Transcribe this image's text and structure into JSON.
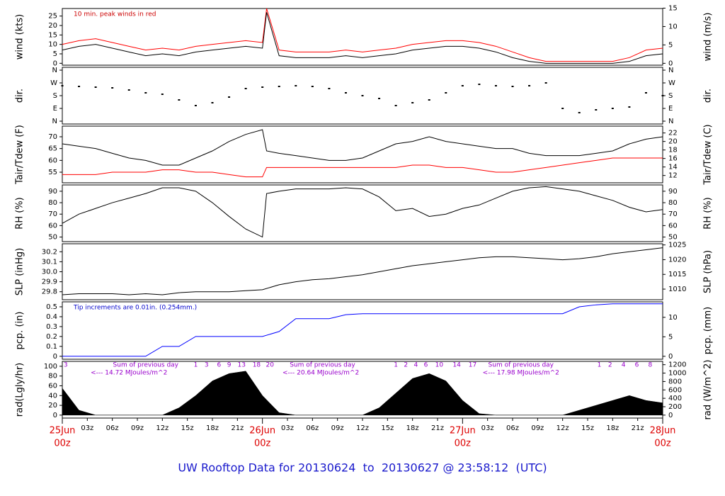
{
  "chart_data": [
    {
      "type": "line",
      "ylabel": "wind (kts)",
      "y2label": "wind (m/s)",
      "x": [
        0,
        2,
        4,
        6,
        8,
        10,
        12,
        14,
        16,
        18,
        20,
        22,
        24,
        24.5,
        26,
        28,
        30,
        32,
        34,
        36,
        38,
        40,
        42,
        44,
        46,
        48,
        50,
        52,
        54,
        56,
        58,
        60,
        62,
        64,
        66,
        68,
        70,
        72
      ],
      "series": [
        {
          "name": "10 min. peak",
          "color": "#ff0000",
          "values": [
            10,
            12,
            13,
            11,
            9,
            7,
            8,
            7,
            9,
            10,
            11,
            12,
            11,
            29,
            7,
            6,
            6,
            6,
            7,
            6,
            7,
            8,
            10,
            11,
            12,
            12,
            11,
            9,
            6,
            3,
            1,
            1,
            1,
            1,
            1,
            3,
            7,
            8
          ]
        },
        {
          "name": "wind",
          "color": "#000000",
          "values": [
            7,
            9,
            10,
            8,
            6,
            4,
            5,
            4,
            6,
            7,
            8,
            9,
            8,
            27,
            4,
            3,
            3,
            3,
            4,
            3,
            4,
            5,
            7,
            8,
            9,
            9,
            8,
            6,
            3,
            1,
            0,
            0,
            0,
            0,
            0,
            1,
            4,
            5
          ]
        }
      ],
      "ylim": [
        -1,
        29
      ],
      "yticks": [
        0,
        5,
        10,
        15,
        20,
        25
      ],
      "y2lim": [
        -0.51,
        14.9
      ],
      "y2ticks": [
        0,
        5,
        10,
        15
      ],
      "annotation": "10 min. peak winds in red",
      "annotation_color": "#cc0000"
    },
    {
      "type": "scatter",
      "ylabel": "dir.",
      "y2label": "dir.",
      "x": [
        0,
        2,
        4,
        6,
        8,
        10,
        12,
        14,
        16,
        18,
        20,
        22,
        24,
        26,
        28,
        30,
        32,
        34,
        36,
        38,
        40,
        42,
        44,
        46,
        48,
        50,
        52,
        54,
        56,
        58,
        60,
        62,
        64,
        66,
        68,
        70,
        72
      ],
      "series": [
        {
          "name": "dir",
          "color": "#000000",
          "values": [
            250,
            245,
            240,
            235,
            220,
            200,
            190,
            150,
            110,
            130,
            170,
            230,
            240,
            245,
            250,
            245,
            230,
            200,
            180,
            160,
            110,
            130,
            150,
            200,
            250,
            260,
            250,
            245,
            250,
            270,
            90,
            60,
            80,
            90,
            100,
            200,
            180
          ]
        }
      ],
      "ylim": [
        -20,
        380
      ],
      "yticks": [
        {
          "value": 0,
          "label": "N"
        },
        {
          "value": 90,
          "label": "E"
        },
        {
          "value": 180,
          "label": "S"
        },
        {
          "value": 270,
          "label": "W"
        },
        {
          "value": 360,
          "label": "N"
        }
      ],
      "y2lim": [
        -20,
        380
      ],
      "y2ticks": [
        {
          "value": 0,
          "label": "N"
        },
        {
          "value": 90,
          "label": "E"
        },
        {
          "value": 180,
          "label": "S"
        },
        {
          "value": 270,
          "label": "W"
        },
        {
          "value": 360,
          "label": "N"
        }
      ]
    },
    {
      "type": "line",
      "ylabel": "Tair/Tdew (F)",
      "y2label": "Tair/Tdew (C)",
      "x": [
        0,
        2,
        4,
        6,
        8,
        10,
        12,
        14,
        16,
        18,
        20,
        22,
        24,
        24.5,
        26,
        28,
        30,
        32,
        34,
        36,
        38,
        40,
        42,
        44,
        46,
        48,
        50,
        52,
        54,
        56,
        58,
        60,
        62,
        64,
        66,
        68,
        70,
        72
      ],
      "series": [
        {
          "name": "Tair",
          "color": "#000000",
          "values": [
            67,
            66,
            65,
            63,
            61,
            60,
            58,
            58,
            61,
            64,
            68,
            71,
            73,
            64,
            63,
            62,
            61,
            60,
            60,
            61,
            64,
            67,
            68,
            70,
            68,
            67,
            66,
            65,
            65,
            63,
            62,
            62,
            62,
            63,
            64,
            67,
            69,
            70
          ]
        },
        {
          "name": "Tdew",
          "color": "#ff0000",
          "values": [
            54,
            54,
            54,
            55,
            55,
            55,
            56,
            56,
            55,
            55,
            54,
            53,
            53,
            57,
            57,
            57,
            57,
            57,
            57,
            57,
            57,
            57,
            58,
            58,
            57,
            57,
            56,
            55,
            55,
            56,
            57,
            58,
            59,
            60,
            61,
            61,
            61,
            61
          ]
        }
      ],
      "ylim": [
        50.5,
        74.5
      ],
      "yticks": [
        55,
        60,
        65,
        70
      ],
      "y2lim": [
        10.28,
        23.61
      ],
      "y2ticks": [
        12,
        14,
        16,
        18,
        20,
        22
      ]
    },
    {
      "type": "line",
      "ylabel": "RH (%)",
      "y2label": "RH (%)",
      "x": [
        0,
        2,
        4,
        6,
        8,
        10,
        12,
        14,
        16,
        18,
        20,
        22,
        24,
        24.5,
        26,
        28,
        30,
        32,
        34,
        36,
        38,
        40,
        42,
        44,
        46,
        48,
        50,
        52,
        54,
        56,
        58,
        60,
        62,
        64,
        66,
        68,
        70,
        72
      ],
      "series": [
        {
          "name": "RH",
          "color": "#000000",
          "values": [
            62,
            70,
            75,
            80,
            84,
            88,
            93,
            93,
            90,
            80,
            68,
            57,
            50,
            88,
            90,
            92,
            92,
            92,
            93,
            92,
            85,
            73,
            75,
            68,
            70,
            75,
            78,
            84,
            90,
            93,
            94,
            92,
            90,
            86,
            82,
            76,
            72,
            74
          ]
        }
      ],
      "ylim": [
        46,
        95.5
      ],
      "yticks": [
        50,
        60,
        70,
        80,
        90
      ],
      "y2lim": [
        46,
        95.5
      ],
      "y2ticks": [
        50,
        60,
        70,
        80,
        90
      ]
    },
    {
      "type": "line",
      "ylabel": "SLP (inHg)",
      "y2label": "SLP (hPa)",
      "x": [
        0,
        2,
        4,
        6,
        8,
        10,
        12,
        14,
        16,
        18,
        20,
        22,
        24,
        26,
        28,
        30,
        32,
        34,
        36,
        38,
        40,
        42,
        44,
        46,
        48,
        50,
        52,
        54,
        56,
        58,
        60,
        62,
        64,
        66,
        68,
        70,
        72
      ],
      "series": [
        {
          "name": "SLP",
          "color": "#000000",
          "values": [
            29.77,
            29.78,
            29.78,
            29.78,
            29.77,
            29.78,
            29.77,
            29.79,
            29.8,
            29.8,
            29.8,
            29.81,
            29.82,
            29.87,
            29.9,
            29.92,
            29.93,
            29.95,
            29.97,
            30,
            30.03,
            30.06,
            30.08,
            30.1,
            30.12,
            30.14,
            30.15,
            30.15,
            30.14,
            30.13,
            30.12,
            30.13,
            30.15,
            30.18,
            30.2,
            30.22,
            30.24
          ]
        }
      ],
      "ylim": [
        29.72,
        30.28
      ],
      "yticks": [
        29.8,
        29.9,
        {
          "value": 30,
          "label": "30.0"
        },
        30.1,
        30.2
      ],
      "y2lim": [
        1006.4,
        1025.4
      ],
      "y2ticks": [
        1010,
        1015,
        1020,
        1025
      ]
    },
    {
      "type": "line",
      "ylabel": "pcp. (in)",
      "y2label": "pcp. (mm)",
      "x": [
        0,
        2,
        4,
        6,
        8,
        10,
        12,
        14,
        16,
        18,
        20,
        22,
        24,
        26,
        28,
        30,
        32,
        34,
        36,
        38,
        40,
        42,
        44,
        46,
        48,
        50,
        52,
        54,
        56,
        58,
        60,
        62,
        64,
        66,
        68,
        70,
        72
      ],
      "series": [
        {
          "name": "pcp",
          "color": "#0000ff",
          "values": [
            0,
            0,
            0,
            0,
            0,
            0,
            0.1,
            0.1,
            0.2,
            0.2,
            0.2,
            0.2,
            0.2,
            0.25,
            0.38,
            0.38,
            0.38,
            0.42,
            0.43,
            0.43,
            0.43,
            0.43,
            0.43,
            0.43,
            0.43,
            0.43,
            0.43,
            0.43,
            0.43,
            0.43,
            0.43,
            0.5,
            0.52,
            0.53,
            0.53,
            0.53,
            0.53
          ]
        }
      ],
      "ylim": [
        -0.03,
        0.55
      ],
      "yticks": [
        0,
        0.1,
        0.2,
        0.3,
        0.4,
        0.5
      ],
      "y2lim": [
        -0.76,
        13.97
      ],
      "y2ticks": [
        0,
        5,
        10
      ],
      "annotation": "Tip increments are 0.01in. (0.254mm.)",
      "annotation_color": "#0000cc"
    },
    {
      "type": "area",
      "ylabel": "rad(Lgly/hr)",
      "y2label": "rad (W/m^2)",
      "x": [
        0,
        2,
        4,
        6,
        8,
        10,
        12,
        14,
        16,
        18,
        20,
        22,
        24,
        26,
        28,
        30,
        32,
        34,
        36,
        38,
        40,
        42,
        44,
        46,
        48,
        50,
        52,
        54,
        56,
        58,
        60,
        62,
        64,
        66,
        68,
        70,
        72
      ],
      "series": [
        {
          "name": "rad",
          "color": "#000000",
          "values": [
            55,
            10,
            0,
            0,
            0,
            0,
            0,
            15,
            40,
            70,
            85,
            90,
            40,
            5,
            0,
            0,
            0,
            0,
            0,
            15,
            45,
            75,
            85,
            70,
            30,
            3,
            0,
            0,
            0,
            0,
            0,
            10,
            20,
            30,
            40,
            30,
            25
          ]
        }
      ],
      "ylim": [
        -6,
        110
      ],
      "yticks": [
        0,
        20,
        40,
        60,
        80,
        100
      ],
      "y2lim": [
        -70,
        1279
      ],
      "y2ticks": [
        0,
        200,
        400,
        600,
        800,
        1000,
        1200
      ],
      "labels": [
        {
          "text": "3",
          "x": 0.4,
          "row": 0
        },
        {
          "text": "Sum of previous day",
          "x": 10,
          "row": 0
        },
        {
          "text": "<--- 14.72 MJoules/m^2",
          "x": 8,
          "row": 1
        },
        {
          "text": "1",
          "x": 16,
          "row": 0
        },
        {
          "text": "3",
          "x": 17.3,
          "row": 0
        },
        {
          "text": "6",
          "x": 18.8,
          "row": 0
        },
        {
          "text": "9",
          "x": 20,
          "row": 0
        },
        {
          "text": "13",
          "x": 21.5,
          "row": 0
        },
        {
          "text": "18",
          "x": 23.3,
          "row": 0
        },
        {
          "text": "20",
          "x": 24.9,
          "row": 0
        },
        {
          "text": "Sum of previous day",
          "x": 31.2,
          "row": 0
        },
        {
          "text": "<--- 20.64 MJoules/m^2",
          "x": 31,
          "row": 1
        },
        {
          "text": "1",
          "x": 40,
          "row": 0
        },
        {
          "text": "2",
          "x": 41.2,
          "row": 0
        },
        {
          "text": "4",
          "x": 42.4,
          "row": 0
        },
        {
          "text": "6",
          "x": 43.6,
          "row": 0
        },
        {
          "text": "10",
          "x": 45.2,
          "row": 0
        },
        {
          "text": "14",
          "x": 47.3,
          "row": 0
        },
        {
          "text": "17",
          "x": 49.2,
          "row": 0
        },
        {
          "text": "Sum of previous day",
          "x": 55,
          "row": 0
        },
        {
          "text": "<--- 17.98 MJoules/m^2",
          "x": 55,
          "row": 1
        },
        {
          "text": "1",
          "x": 64.4,
          "row": 0
        },
        {
          "text": "2",
          "x": 65.7,
          "row": 0
        },
        {
          "text": "4",
          "x": 67.3,
          "row": 0
        },
        {
          "text": "6",
          "x": 68.9,
          "row": 0
        },
        {
          "text": "8",
          "x": 70.5,
          "row": 0
        }
      ],
      "xlim": [
        0,
        72
      ],
      "xticks": [
        {
          "value": 0,
          "label": "00z"
        },
        {
          "value": 3,
          "label": "03z"
        },
        {
          "value": 6,
          "label": "06z"
        },
        {
          "value": 9,
          "label": "09z"
        },
        {
          "value": 12,
          "label": "12z"
        },
        {
          "value": 15,
          "label": "15z"
        },
        {
          "value": 18,
          "label": "18z"
        },
        {
          "value": 21,
          "label": "21z"
        },
        {
          "value": 24,
          "label": "00z"
        },
        {
          "value": 27,
          "label": "03z"
        },
        {
          "value": 30,
          "label": "06z"
        },
        {
          "value": 33,
          "label": "09z"
        },
        {
          "value": 36,
          "label": "12z"
        },
        {
          "value": 39,
          "label": "15z"
        },
        {
          "value": 42,
          "label": "18z"
        },
        {
          "value": 45,
          "label": "21z"
        },
        {
          "value": 48,
          "label": "00z"
        },
        {
          "value": 51,
          "label": "03z"
        },
        {
          "value": 54,
          "label": "06z"
        },
        {
          "value": 57,
          "label": "09z"
        },
        {
          "value": 60,
          "label": "12z"
        },
        {
          "value": 63,
          "label": "15z"
        },
        {
          "value": 66,
          "label": "18z"
        },
        {
          "value": 69,
          "label": "21z"
        },
        {
          "value": 72,
          "label": "00z"
        }
      ],
      "day_labels": [
        {
          "value": 0,
          "label": "25Jun"
        },
        {
          "value": 24,
          "label": "26Jun"
        },
        {
          "value": 48,
          "label": "27Jun"
        },
        {
          "value": 72,
          "label": "28Jun"
        }
      ]
    }
  ],
  "footer_title": "UW Rooftop Data for 20130624  to  20130627 @ 23:58:12  (UTC)"
}
